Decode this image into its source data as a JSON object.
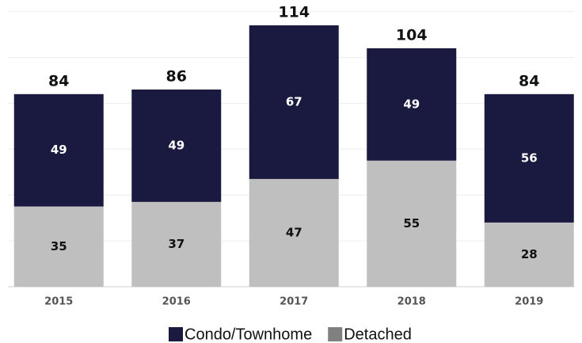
{
  "chart_data": {
    "type": "stacked_bar",
    "categories": [
      "2015",
      "2016",
      "2017",
      "2018",
      "2019"
    ],
    "series": [
      {
        "name": "Condo/Townhome",
        "color": "#1a1a40",
        "values": [
          49,
          49,
          67,
          49,
          56
        ]
      },
      {
        "name": "Detached",
        "color": "#bfbfbf",
        "values": [
          35,
          37,
          47,
          55,
          28
        ]
      }
    ],
    "totals": [
      84,
      86,
      114,
      104,
      84
    ],
    "ylim": [
      0,
      120
    ],
    "yticks": [
      0,
      20,
      40,
      60,
      80,
      100,
      120
    ],
    "grid": true
  }
}
